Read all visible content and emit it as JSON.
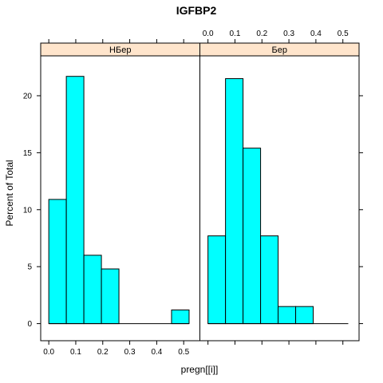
{
  "chart_data": {
    "type": "bar",
    "title": "IGFBP2",
    "xlabel": "pregn[[i]]",
    "ylabel": "Percent of Total",
    "xlim": [
      -0.03,
      0.56
    ],
    "ylim": [
      -1.5,
      23.5
    ],
    "x_ticks": [
      0.0,
      0.1,
      0.2,
      0.3,
      0.4,
      0.5
    ],
    "x_tick_labels": [
      "0.0",
      "0.1",
      "0.2",
      "0.3",
      "0.4",
      "0.5"
    ],
    "y_ticks": [
      0,
      5,
      10,
      15,
      20
    ],
    "y_tick_labels": [
      "0",
      "5",
      "10",
      "15",
      "20"
    ],
    "bin_edges": [
      0.0,
      0.065,
      0.13,
      0.195,
      0.26,
      0.325,
      0.39,
      0.455,
      0.52
    ],
    "fill_color": "#00ffff",
    "strip_color": "#ffe5cc",
    "grid": false,
    "panels": [
      {
        "name": "НБер",
        "values": [
          10.9,
          21.7,
          6.0,
          4.8,
          0,
          0,
          0,
          1.2
        ]
      },
      {
        "name": "Бер",
        "values": [
          7.7,
          21.5,
          15.4,
          7.7,
          1.5,
          1.5,
          0,
          0
        ]
      }
    ]
  }
}
